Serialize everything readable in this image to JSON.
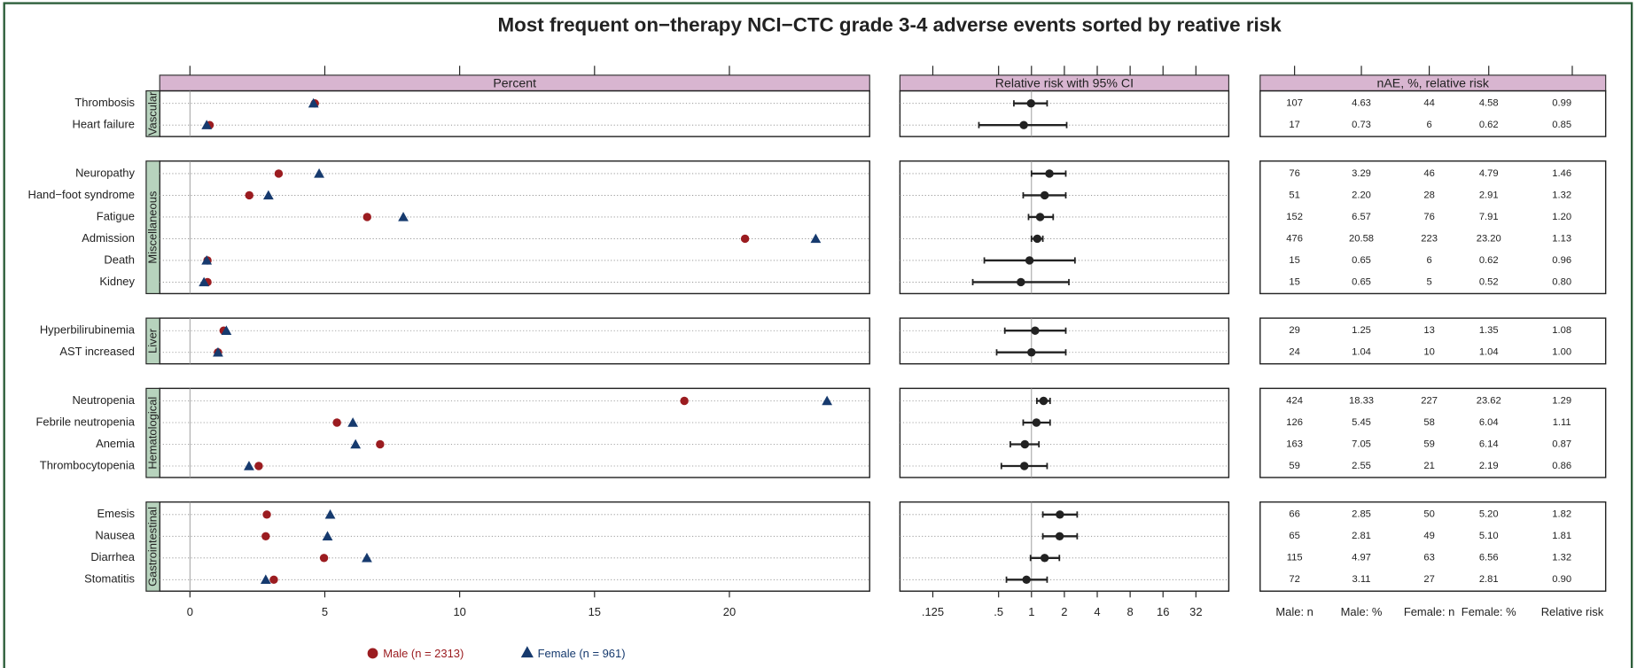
{
  "chart_data": {
    "type": "forest-dotplot",
    "title": "Most frequent on−therapy NCI−CTC grade 3‑4 adverse events sorted by reative risk",
    "panel_titles": [
      "Percent",
      "Relative risk with 95% CI",
      "nAE, %, relative risk"
    ],
    "series": [
      {
        "name": "Male (n = 2313)",
        "color": "#9b1c20"
      },
      {
        "name": "Female (n = 961)",
        "color": "#163a6e"
      }
    ],
    "table_columns": [
      "Male: n",
      "Male: %",
      "Female: n",
      "Female: %",
      "Relative risk"
    ],
    "xlim": [
      -1.12,
      25.2
    ],
    "xticks": [
      0,
      5,
      10,
      15,
      20
    ],
    "x2scale": "log",
    "x2lim": [
      0.0625,
      64
    ],
    "x2ticks": [
      {
        "value": 0.125,
        "label": ".125"
      },
      {
        "value": 0.5,
        "label": ".5"
      },
      1,
      2,
      4,
      8,
      16,
      32
    ],
    "groups": [
      {
        "name": "Vascular",
        "rows": [
          {
            "label": "Thrombosis",
            "male_n": 107,
            "male_pct": 4.63,
            "male_pct_label": "4.63",
            "female_n": 44,
            "female_pct": 4.58,
            "female_pct_label": "4.58",
            "rr": 0.99,
            "rr_label": "0.99",
            "rr_low": 0.69,
            "rr_high": 1.39
          },
          {
            "label": "Heart failure",
            "male_n": 17,
            "male_pct": 0.73,
            "male_pct_label": "0.73",
            "female_n": 6,
            "female_pct": 0.62,
            "female_pct_label": "0.62",
            "rr": 0.85,
            "rr_label": "0.85",
            "rr_low": 0.33,
            "rr_high": 2.1
          }
        ]
      },
      {
        "name": "Miscellaneous",
        "rows": [
          {
            "label": "Neuropathy",
            "male_n": 76,
            "male_pct": 3.29,
            "male_pct_label": "3.29",
            "female_n": 46,
            "female_pct": 4.79,
            "female_pct_label": "4.79",
            "rr": 1.46,
            "rr_label": "1.46",
            "rr_low": 1.0,
            "rr_high": 2.06
          },
          {
            "label": "Hand−foot syndrome",
            "male_n": 51,
            "male_pct": 2.2,
            "male_pct_label": "2.20",
            "female_n": 28,
            "female_pct": 2.91,
            "female_pct_label": "2.91",
            "rr": 1.32,
            "rr_label": "1.32",
            "rr_low": 0.84,
            "rr_high": 2.06
          },
          {
            "label": "Fatigue",
            "male_n": 152,
            "male_pct": 6.57,
            "male_pct_label": "6.57",
            "female_n": 76,
            "female_pct": 7.91,
            "female_pct_label": "7.91",
            "rr": 1.2,
            "rr_label": "1.20",
            "rr_low": 0.94,
            "rr_high": 1.58
          },
          {
            "label": "Admission",
            "male_n": 476,
            "male_pct": 20.58,
            "male_pct_label": "20.58",
            "female_n": 223,
            "female_pct": 23.2,
            "female_pct_label": "23.20",
            "rr": 1.13,
            "rr_label": "1.13",
            "rr_low": 1.0,
            "rr_high": 1.27
          },
          {
            "label": "Death",
            "male_n": 15,
            "male_pct": 0.65,
            "male_pct_label": "0.65",
            "female_n": 6,
            "female_pct": 0.62,
            "female_pct_label": "0.62",
            "rr": 0.96,
            "rr_label": "0.96",
            "rr_low": 0.37,
            "rr_high": 2.5
          },
          {
            "label": "Kidney",
            "male_n": 15,
            "male_pct": 0.65,
            "male_pct_label": "0.65",
            "female_n": 5,
            "female_pct": 0.52,
            "female_pct_label": "0.52",
            "rr": 0.8,
            "rr_label": "0.80",
            "rr_low": 0.29,
            "rr_high": 2.2
          }
        ]
      },
      {
        "name": "Liver",
        "rows": [
          {
            "label": "Hyperbilirubinemia",
            "male_n": 29,
            "male_pct": 1.25,
            "male_pct_label": "1.25",
            "female_n": 13,
            "female_pct": 1.35,
            "female_pct_label": "1.35",
            "rr": 1.08,
            "rr_label": "1.08",
            "rr_low": 0.57,
            "rr_high": 2.06
          },
          {
            "label": "AST increased",
            "male_n": 24,
            "male_pct": 1.04,
            "male_pct_label": "1.04",
            "female_n": 10,
            "female_pct": 1.04,
            "female_pct_label": "1.04",
            "rr": 1.0,
            "rr_label": "1.00",
            "rr_low": 0.48,
            "rr_high": 2.06
          }
        ]
      },
      {
        "name": "Hematological",
        "rows": [
          {
            "label": "Neutropenia",
            "male_n": 424,
            "male_pct": 18.33,
            "male_pct_label": "18.33",
            "female_n": 227,
            "female_pct": 23.62,
            "female_pct_label": "23.62",
            "rr": 1.29,
            "rr_label": "1.29",
            "rr_low": 1.12,
            "rr_high": 1.48
          },
          {
            "label": "Febrile neutropenia",
            "male_n": 126,
            "male_pct": 5.45,
            "male_pct_label": "5.45",
            "female_n": 58,
            "female_pct": 6.04,
            "female_pct_label": "6.04",
            "rr": 1.11,
            "rr_label": "1.11",
            "rr_low": 0.84,
            "rr_high": 1.48
          },
          {
            "label": "Anemia",
            "male_n": 163,
            "male_pct": 7.05,
            "male_pct_label": "7.05",
            "female_n": 59,
            "female_pct": 6.14,
            "female_pct_label": "6.14",
            "rr": 0.87,
            "rr_label": "0.87",
            "rr_low": 0.64,
            "rr_high": 1.17
          },
          {
            "label": "Thrombocytopenia",
            "male_n": 59,
            "male_pct": 2.55,
            "male_pct_label": "2.55",
            "female_n": 21,
            "female_pct": 2.19,
            "female_pct_label": "2.19",
            "rr": 0.86,
            "rr_label": "0.86",
            "rr_low": 0.53,
            "rr_high": 1.39
          }
        ]
      },
      {
        "name": "Gastrointestinal",
        "rows": [
          {
            "label": "Emesis",
            "male_n": 66,
            "male_pct": 2.85,
            "male_pct_label": "2.85",
            "female_n": 50,
            "female_pct": 5.2,
            "female_pct_label": "5.20",
            "rr": 1.82,
            "rr_label": "1.82",
            "rr_low": 1.27,
            "rr_high": 2.62
          },
          {
            "label": "Nausea",
            "male_n": 65,
            "male_pct": 2.81,
            "male_pct_label": "2.81",
            "female_n": 49,
            "female_pct": 5.1,
            "female_pct_label": "5.10",
            "rr": 1.81,
            "rr_label": "1.81",
            "rr_low": 1.27,
            "rr_high": 2.62
          },
          {
            "label": "Diarrhea",
            "male_n": 115,
            "male_pct": 4.97,
            "male_pct_label": "4.97",
            "female_n": 63,
            "female_pct": 6.56,
            "female_pct_label": "6.56",
            "rr": 1.32,
            "rr_label": "1.32",
            "rr_low": 0.98,
            "rr_high": 1.8
          },
          {
            "label": "Stomatitis",
            "male_n": 72,
            "male_pct": 3.11,
            "male_pct_label": "3.11",
            "female_n": 27,
            "female_pct": 2.81,
            "female_pct_label": "2.81",
            "rr": 0.9,
            "rr_label": "0.90",
            "rr_low": 0.59,
            "rr_high": 1.39
          }
        ]
      }
    ]
  }
}
